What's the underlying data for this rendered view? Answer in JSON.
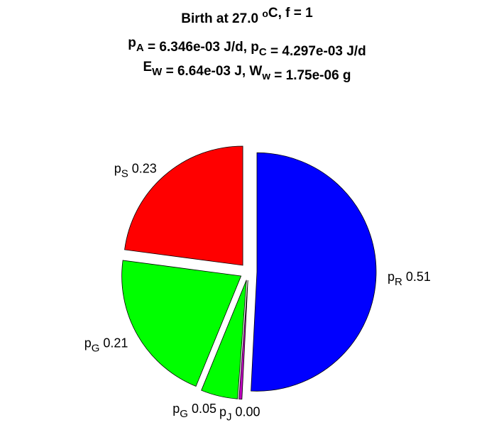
{
  "chart_data": {
    "type": "pie",
    "title_lines": [
      [
        {
          "text": "Birth at 27.0 "
        },
        {
          "sup": "o"
        },
        {
          "text": "C, f = 1"
        }
      ],
      [
        {
          "text": "p"
        },
        {
          "sub": "A"
        },
        {
          "text": " = 6.346e-03 J/d, p"
        },
        {
          "sub": "C"
        },
        {
          "text": " = 4.297e-03 J/d"
        }
      ],
      [
        {
          "text": "E"
        },
        {
          "sub": "W"
        },
        {
          "text": " = 6.64e-03 J, W"
        },
        {
          "sub": "w"
        },
        {
          "text": " = 1.75e-06 g"
        }
      ]
    ],
    "label_base": "p",
    "categories": [
      "S",
      "G",
      "G",
      "J",
      "R"
    ],
    "values": [
      0.23,
      0.21,
      0.05,
      0.004,
      0.51
    ],
    "value_labels": [
      "0.23",
      "0.21",
      "0.05",
      "0.00",
      "0.51"
    ],
    "colors": [
      "#ff0000",
      "#00ff00",
      "#00ff00",
      "#bf00bf",
      "#0000ff"
    ],
    "exploded": true
  }
}
